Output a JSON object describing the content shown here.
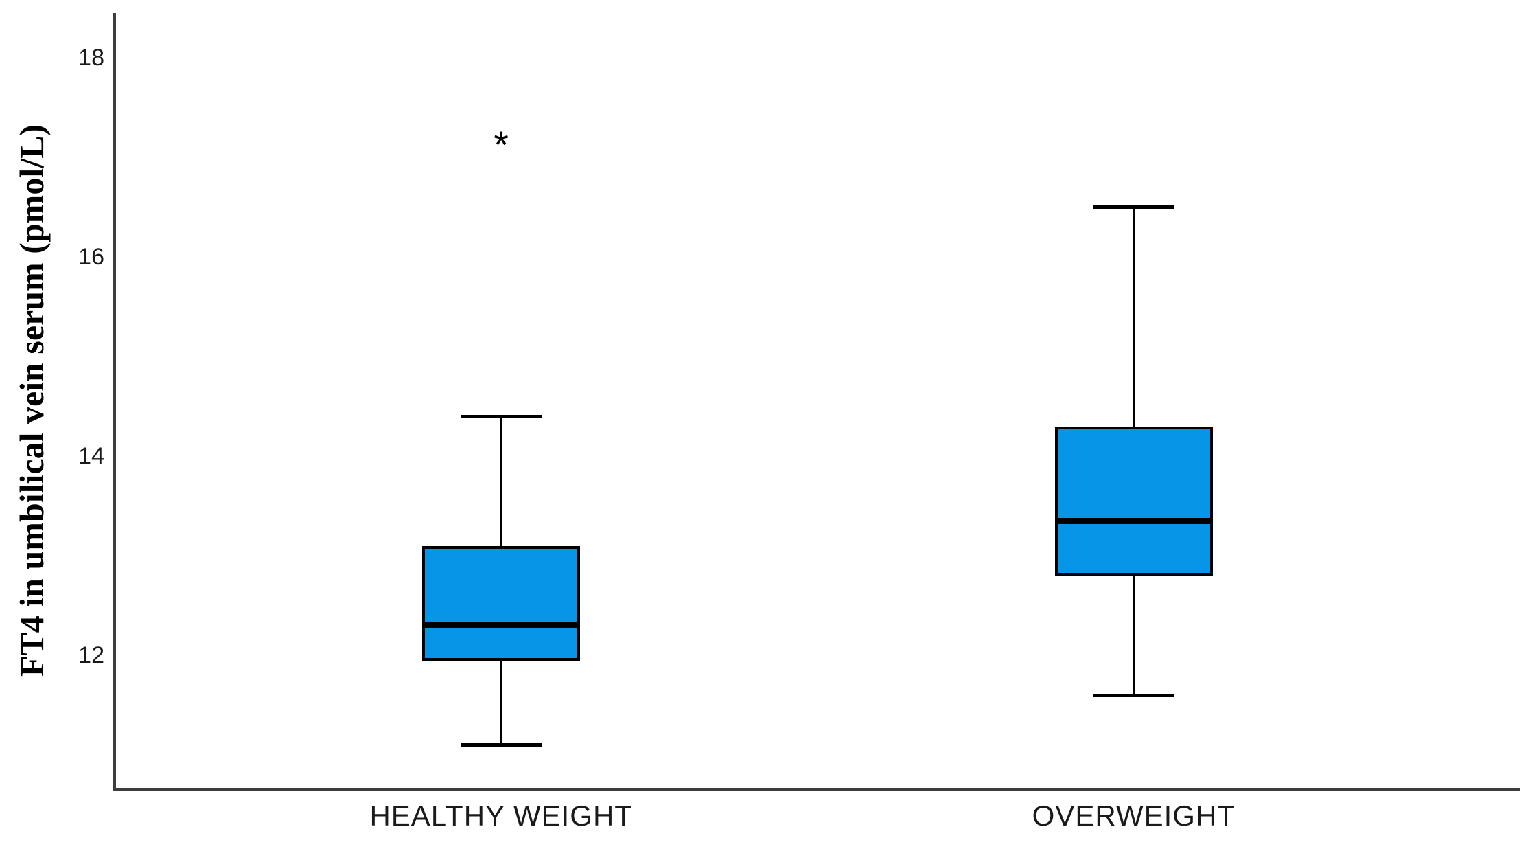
{
  "chart_data": {
    "type": "boxplot",
    "title": "",
    "xlabel": "",
    "ylabel": "FT4 in umbilical vein serum (pmol/L)",
    "categories": [
      "HEALTHY WEIGHT",
      "OVERWEIGHT"
    ],
    "yticks": [
      "18",
      "16",
      "14",
      "12"
    ],
    "ytick_values": [
      18,
      16,
      14,
      12
    ],
    "ylim": [
      10.65,
      18.45
    ],
    "grid": false,
    "legend": false,
    "series": [
      {
        "category": "HEALTHY WEIGHT",
        "whisker_low": 11.1,
        "q1": 11.95,
        "median": 12.3,
        "q3": 13.1,
        "whisker_high": 14.4,
        "outliers": [
          {
            "value": 17.2,
            "marker": "*",
            "type": "extreme"
          }
        ]
      },
      {
        "category": "OVERWEIGHT",
        "whisker_low": 11.6,
        "q1": 12.8,
        "median": 13.35,
        "q3": 14.3,
        "whisker_high": 16.5,
        "outliers": []
      }
    ],
    "colors": {
      "box_fill": "#0795e8",
      "box_border": "#000000",
      "median": "#000000",
      "whisker": "#000000",
      "axis": "#3d3d3d",
      "text": "#1a1a1a",
      "background": "#ffffff"
    }
  }
}
